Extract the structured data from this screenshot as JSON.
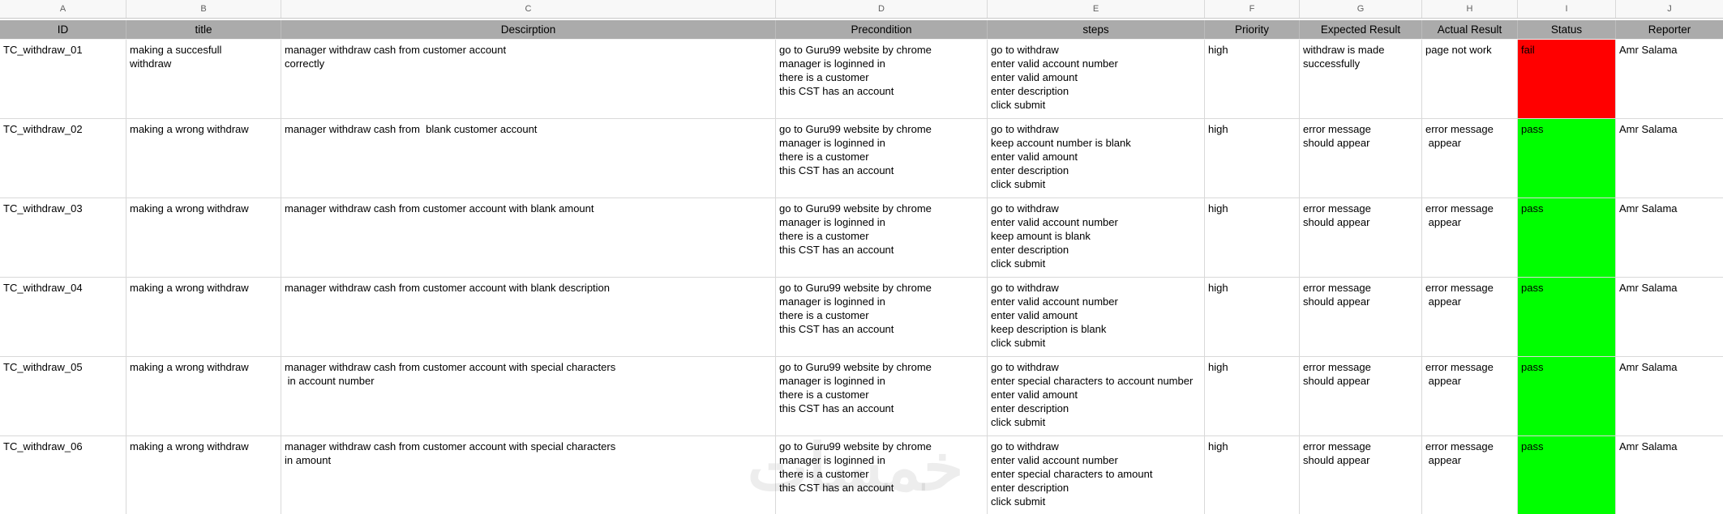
{
  "columns": [
    {
      "letter": "A",
      "label": "ID"
    },
    {
      "letter": "B",
      "label": "title"
    },
    {
      "letter": "C",
      "label": "Descirption"
    },
    {
      "letter": "D",
      "label": "Precondition"
    },
    {
      "letter": "E",
      "label": "steps"
    },
    {
      "letter": "F",
      "label": "Priority"
    },
    {
      "letter": "G",
      "label": "Expected Result"
    },
    {
      "letter": "H",
      "label": "Actual Result"
    },
    {
      "letter": "I",
      "label": "Status"
    },
    {
      "letter": "J",
      "label": "Reporter"
    }
  ],
  "status_colors": {
    "fail": "#ff0000",
    "pass": "#00ff00"
  },
  "watermark": {
    "text": "خمسات"
  },
  "rows": [
    {
      "id": "TC_withdraw_01",
      "title": "making a succesfull\nwithdraw",
      "description": "manager withdraw cash from customer account\ncorrectly",
      "precondition": [
        "go to Guru99 website by chrome",
        "manager is loginned in",
        "there is a customer",
        "this CST has an account"
      ],
      "steps": [
        "go to withdraw",
        "enter valid account number",
        "enter valid amount",
        "enter description",
        "click submit"
      ],
      "priority": "high",
      "expected_result": "withdraw is made\nsuccessfully",
      "actual_result": "page not work",
      "status": "fail",
      "reporter": "Amr Salama"
    },
    {
      "id": "TC_withdraw_02",
      "title": "making a wrong withdraw",
      "description": "manager withdraw cash from  blank customer account",
      "precondition": [
        "go to Guru99 website by chrome",
        "manager is loginned in",
        "there is a customer",
        "this CST has an account"
      ],
      "steps": [
        "go to withdraw",
        "keep account number is blank",
        "enter valid amount",
        "enter description",
        "click submit"
      ],
      "priority": "high",
      "expected_result": "error message\nshould appear",
      "actual_result": "error message\n appear",
      "status": "pass",
      "reporter": "Amr Salama"
    },
    {
      "id": "TC_withdraw_03",
      "title": "making a wrong withdraw",
      "description": "manager withdraw cash from customer account with blank amount",
      "precondition": [
        "go to Guru99 website by chrome",
        "manager is loginned in",
        "there is a customer",
        "this CST has an account"
      ],
      "steps": [
        "go to withdraw",
        "enter valid account number",
        "keep amount is blank",
        "enter description",
        "click submit"
      ],
      "priority": "high",
      "expected_result": "error message\nshould appear",
      "actual_result": "error message\n appear",
      "status": "pass",
      "reporter": "Amr Salama"
    },
    {
      "id": "TC_withdraw_04",
      "title": "making a wrong withdraw",
      "description": "manager withdraw cash from customer account with blank description",
      "precondition": [
        "go to Guru99 website by chrome",
        "manager is loginned in",
        "there is a customer",
        "this CST has an account"
      ],
      "steps": [
        "go to withdraw",
        "enter valid account number",
        "enter valid amount",
        "keep description is blank",
        "click submit"
      ],
      "priority": "high",
      "expected_result": "error message\nshould appear",
      "actual_result": "error message\n appear",
      "status": "pass",
      "reporter": "Amr Salama"
    },
    {
      "id": "TC_withdraw_05",
      "title": "making a wrong withdraw",
      "description": "manager withdraw cash from customer account with special characters\n in account number",
      "precondition": [
        "go to Guru99 website by chrome",
        "manager is loginned in",
        "there is a customer",
        "this CST has an account"
      ],
      "steps": [
        "go to withdraw",
        "enter special characters to account number",
        "enter valid amount",
        "enter description",
        "click submit"
      ],
      "priority": "high",
      "expected_result": "error message\nshould appear",
      "actual_result": "error message\n appear",
      "status": "pass",
      "reporter": "Amr Salama"
    },
    {
      "id": "TC_withdraw_06",
      "title": "making a wrong withdraw",
      "description": "manager withdraw cash from customer account with special characters\nin amount",
      "precondition": [
        "go to Guru99 website by chrome",
        "manager is loginned in",
        "there is a customer",
        "this CST has an account"
      ],
      "steps": [
        "go to withdraw",
        "enter valid account number",
        "enter special characters to amount",
        "enter description",
        "click submit"
      ],
      "priority": "high",
      "expected_result": "error message\nshould appear",
      "actual_result": "error message\n appear",
      "status": "pass",
      "reporter": "Amr Salama"
    }
  ]
}
